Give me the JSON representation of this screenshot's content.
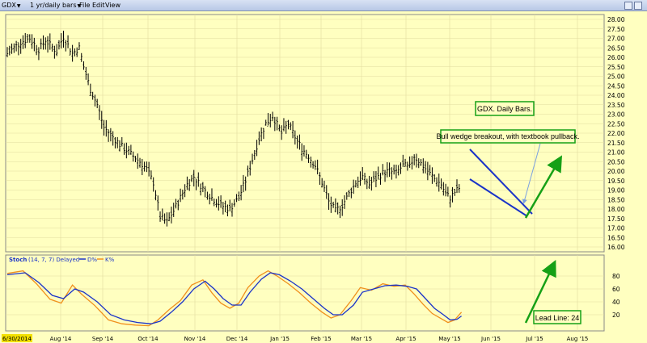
{
  "toolbar": {
    "symbol": "GDX",
    "period": "1 yr/daily bars",
    "menus": [
      "File",
      "Edit",
      "View"
    ]
  },
  "chart_data": [
    {
      "type": "bar",
      "style": "ohlc-daily",
      "ylim": [
        16.0,
        28.0
      ],
      "yticks": [
        "16.00",
        "16.50",
        "17.00",
        "17.50",
        "18.00",
        "18.50",
        "19.00",
        "19.50",
        "20.00",
        "20.50",
        "21.00",
        "21.50",
        "22.00",
        "22.50",
        "23.00",
        "23.50",
        "24.00",
        "24.50",
        "25.00",
        "25.50",
        "26.00",
        "26.50",
        "27.00",
        "27.50",
        "28.00"
      ],
      "xticks": [
        "Aug '14",
        "Sep '14",
        "Oct '14",
        "Nov '14",
        "Dec '14",
        "Jan '15",
        "Feb '15",
        "Mar '15",
        "Apr '15",
        "May '15",
        "Jun '15",
        "Jul '15",
        "Aug '15"
      ],
      "start_label": "6/30/2014",
      "grid": true,
      "price_path": [
        [
          0,
          26.2
        ],
        [
          6,
          26.8
        ],
        [
          10,
          27.0
        ],
        [
          14,
          26.4
        ],
        [
          17,
          26.9
        ],
        [
          22,
          26.3
        ],
        [
          25,
          27.1
        ],
        [
          29,
          26.2
        ],
        [
          32,
          26.5
        ],
        [
          34,
          25.5
        ],
        [
          37,
          24.3
        ],
        [
          40,
          23.5
        ],
        [
          43,
          22.3
        ],
        [
          47,
          21.8
        ],
        [
          50,
          21.4
        ],
        [
          54,
          21.0
        ],
        [
          59,
          20.5
        ],
        [
          62,
          20.1
        ],
        [
          65,
          19.4
        ],
        [
          68,
          17.6
        ],
        [
          71,
          17.3
        ],
        [
          74,
          17.9
        ],
        [
          77,
          18.6
        ],
        [
          80,
          19.3
        ],
        [
          83,
          19.7
        ],
        [
          87,
          19.1
        ],
        [
          91,
          18.6
        ],
        [
          95,
          18.2
        ],
        [
          99,
          18.0
        ],
        [
          103,
          18.6
        ],
        [
          106,
          19.5
        ],
        [
          109,
          20.6
        ],
        [
          112,
          21.7
        ],
        [
          115,
          22.5
        ],
        [
          118,
          22.9
        ],
        [
          122,
          22.0
        ],
        [
          125,
          22.5
        ],
        [
          128,
          21.8
        ],
        [
          131,
          21.2
        ],
        [
          134,
          20.8
        ],
        [
          137,
          20.3
        ],
        [
          140,
          19.4
        ],
        [
          143,
          18.4
        ],
        [
          146,
          17.9
        ],
        [
          149,
          18.2
        ],
        [
          152,
          18.8
        ],
        [
          155,
          19.4
        ],
        [
          158,
          19.7
        ],
        [
          161,
          19.3
        ],
        [
          164,
          19.6
        ],
        [
          167,
          19.9
        ],
        [
          170,
          20.0
        ],
        [
          173,
          19.9
        ],
        [
          176,
          20.3
        ],
        [
          179,
          20.2
        ],
        [
          181,
          20.8
        ],
        [
          184,
          20.4
        ],
        [
          187,
          20.0
        ],
        [
          190,
          19.6
        ],
        [
          193,
          19.3
        ],
        [
          195,
          18.8
        ],
        [
          197,
          18.6
        ],
        [
          199,
          18.9
        ],
        [
          201,
          19.1
        ]
      ],
      "annotations": [
        "GDX. Daily Bars.",
        "Bull wedge breakout, with textbook pullback."
      ]
    },
    {
      "type": "line",
      "title": "Stoch",
      "params": "(14, 7, 7) Delayed",
      "series": [
        {
          "name": "D%",
          "color": "#1a33c8",
          "points": [
            [
              0,
              82
            ],
            [
              8,
              85
            ],
            [
              14,
              70
            ],
            [
              20,
              50
            ],
            [
              25,
              45
            ],
            [
              30,
              60
            ],
            [
              34,
              55
            ],
            [
              40,
              40
            ],
            [
              46,
              20
            ],
            [
              52,
              12
            ],
            [
              58,
              8
            ],
            [
              64,
              6
            ],
            [
              68,
              10
            ],
            [
              73,
              24
            ],
            [
              78,
              40
            ],
            [
              83,
              60
            ],
            [
              88,
              72
            ],
            [
              92,
              60
            ],
            [
              96,
              45
            ],
            [
              100,
              35
            ],
            [
              104,
              35
            ],
            [
              108,
              55
            ],
            [
              113,
              75
            ],
            [
              117,
              85
            ],
            [
              121,
              82
            ],
            [
              126,
              72
            ],
            [
              131,
              60
            ],
            [
              136,
              45
            ],
            [
              141,
              30
            ],
            [
              145,
              20
            ],
            [
              149,
              20
            ],
            [
              154,
              35
            ],
            [
              158,
              55
            ],
            [
              163,
              60
            ],
            [
              168,
              65
            ],
            [
              173,
              66
            ],
            [
              178,
              64
            ],
            [
              182,
              60
            ],
            [
              186,
              45
            ],
            [
              190,
              30
            ],
            [
              194,
              20
            ],
            [
              197,
              12
            ],
            [
              200,
              13
            ],
            [
              202,
              18
            ]
          ]
        },
        {
          "name": "K%",
          "color": "#f0901c",
          "points": [
            [
              0,
              84
            ],
            [
              7,
              88
            ],
            [
              13,
              68
            ],
            [
              19,
              44
            ],
            [
              24,
              38
            ],
            [
              29,
              66
            ],
            [
              33,
              52
            ],
            [
              39,
              34
            ],
            [
              45,
              12
            ],
            [
              51,
              6
            ],
            [
              57,
              4
            ],
            [
              63,
              3
            ],
            [
              67,
              12
            ],
            [
              72,
              28
            ],
            [
              77,
              42
            ],
            [
              82,
              66
            ],
            [
              87,
              74
            ],
            [
              91,
              54
            ],
            [
              95,
              38
            ],
            [
              99,
              30
            ],
            [
              103,
              38
            ],
            [
              107,
              62
            ],
            [
              112,
              80
            ],
            [
              116,
              88
            ],
            [
              120,
              80
            ],
            [
              125,
              68
            ],
            [
              130,
              54
            ],
            [
              135,
              38
            ],
            [
              140,
              24
            ],
            [
              144,
              15
            ],
            [
              148,
              20
            ],
            [
              153,
              42
            ],
            [
              157,
              62
            ],
            [
              162,
              58
            ],
            [
              167,
              68
            ],
            [
              172,
              64
            ],
            [
              177,
              66
            ],
            [
              181,
              52
            ],
            [
              185,
              36
            ],
            [
              189,
              22
            ],
            [
              193,
              14
            ],
            [
              196,
              8
            ],
            [
              199,
              12
            ],
            [
              202,
              24
            ]
          ]
        }
      ],
      "yticks": [
        "20",
        "40",
        "60",
        "80"
      ],
      "lead_line_label": "Lead Line: 24"
    }
  ]
}
